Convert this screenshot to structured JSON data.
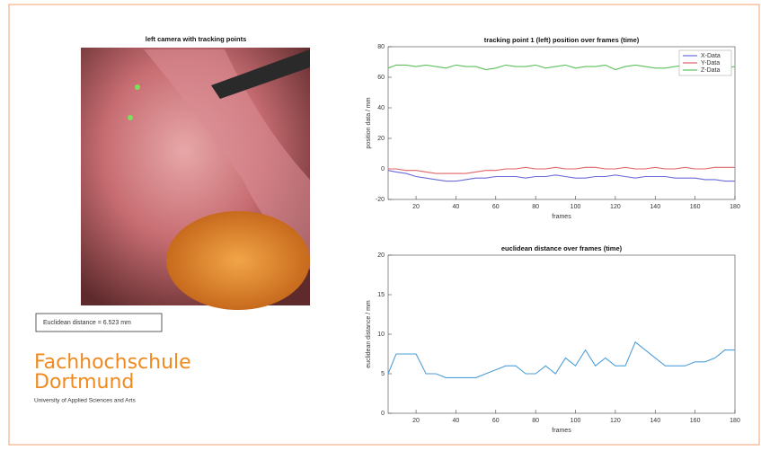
{
  "image": {
    "title": "left camera with tracking points"
  },
  "readout": "Euclidean distance = 6.523 mm",
  "logo": {
    "line1": "Fachhochschule",
    "line2": "Dortmund",
    "subtitle": "University of Applied Sciences and Arts"
  },
  "chart_data": [
    {
      "type": "line",
      "title": "tracking point 1 (left) position over frames (time)",
      "xlabel": "frames",
      "ylabel": "position data / mm",
      "x": [
        6,
        10,
        15,
        20,
        25,
        30,
        35,
        40,
        45,
        50,
        55,
        60,
        65,
        70,
        75,
        80,
        85,
        90,
        95,
        100,
        105,
        110,
        115,
        120,
        125,
        130,
        135,
        140,
        145,
        150,
        155,
        160,
        165,
        170,
        175,
        180
      ],
      "series": [
        {
          "name": "X-Data",
          "color": "#6a6ad8",
          "values": [
            -1,
            -2,
            -3,
            -5,
            -6,
            -7,
            -8,
            -8,
            -7,
            -6,
            -6,
            -5,
            -5,
            -5,
            -6,
            -5,
            -5,
            -4,
            -5,
            -6,
            -6,
            -5,
            -5,
            -4,
            -5,
            -6,
            -5,
            -5,
            -5,
            -6,
            -6,
            -6,
            -7,
            -7,
            -8,
            -8
          ]
        },
        {
          "name": "Y-Data",
          "color": "#e06464",
          "values": [
            0,
            0,
            -1,
            -1,
            -2,
            -3,
            -3,
            -3,
            -3,
            -2,
            -1,
            -1,
            0,
            0,
            1,
            0,
            0,
            1,
            0,
            0,
            1,
            1,
            0,
            0,
            1,
            0,
            0,
            1,
            0,
            0,
            1,
            0,
            0,
            1,
            1,
            1
          ]
        },
        {
          "name": "Z-Data",
          "color": "#5cbf5c",
          "values": [
            66,
            68,
            68,
            67,
            68,
            67,
            66,
            68,
            67,
            67,
            65,
            66,
            68,
            67,
            67,
            68,
            66,
            67,
            68,
            66,
            67,
            67,
            68,
            65,
            67,
            68,
            67,
            66,
            66,
            67,
            68,
            66,
            67,
            68,
            66,
            67
          ]
        }
      ],
      "xlim": [
        6,
        180
      ],
      "ylim": [
        -20,
        80
      ],
      "xticks": [
        20,
        40,
        60,
        80,
        100,
        120,
        140,
        160,
        180
      ],
      "yticks": [
        -20,
        0,
        20,
        40,
        60,
        80
      ],
      "legend": "upper right"
    },
    {
      "type": "line",
      "title": "euclidean distance over frames (time)",
      "xlabel": "frames",
      "ylabel": "euclidean distance / mm",
      "x": [
        6,
        10,
        15,
        20,
        25,
        30,
        35,
        40,
        45,
        50,
        55,
        60,
        65,
        70,
        75,
        80,
        85,
        90,
        95,
        100,
        105,
        110,
        115,
        120,
        125,
        130,
        135,
        140,
        145,
        150,
        155,
        160,
        165,
        170,
        175,
        180
      ],
      "series": [
        {
          "color": "#4f9fd8",
          "values": [
            5,
            7.5,
            7.5,
            7.5,
            5,
            5,
            4.5,
            4.5,
            4.5,
            4.5,
            5,
            5.5,
            6,
            6,
            5,
            5,
            6,
            5,
            7,
            6,
            8,
            6,
            7,
            6,
            6,
            9,
            8,
            7,
            6,
            6,
            6,
            6.5,
            6.5,
            7,
            8,
            8
          ]
        }
      ],
      "xlim": [
        6,
        180
      ],
      "ylim": [
        0,
        20
      ],
      "xticks": [
        20,
        40,
        60,
        80,
        100,
        120,
        140,
        160,
        180
      ],
      "yticks": [
        0,
        5,
        10,
        15,
        20
      ]
    }
  ]
}
